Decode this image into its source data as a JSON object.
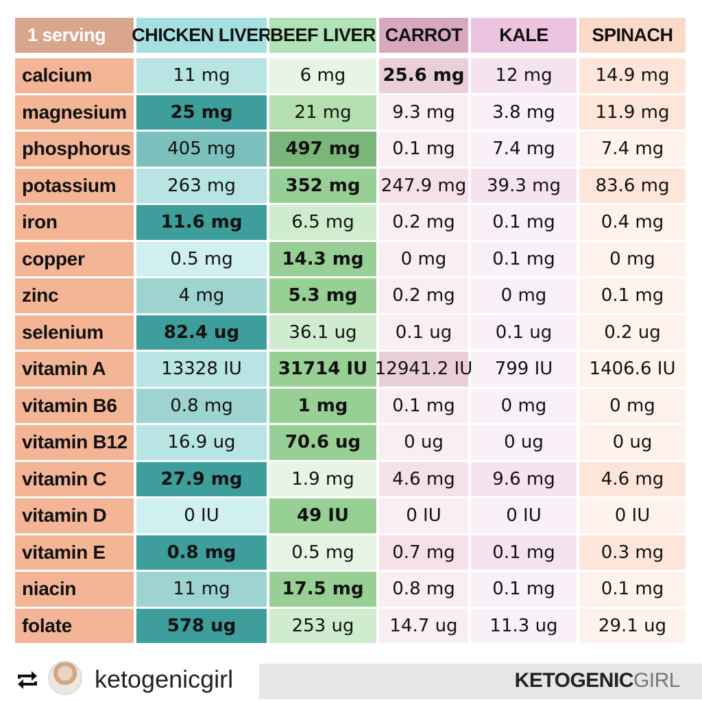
{
  "header": {
    "serving_label": "1 serving",
    "columns": [
      "CHICKEN LIVER",
      "BEEF LIVER",
      "CARROT",
      "KALE",
      "SPINACH"
    ]
  },
  "colors": {
    "header_bg": [
      "#d9a58d",
      "#a6dfe0",
      "#b2e3b6",
      "#d8a8bd",
      "#ecc3e0",
      "#fbd9c8"
    ],
    "row_label_bg": "#f4b596",
    "chicken_liver_shades": [
      "#cfeff0",
      "#b8e4e4",
      "#9dd3d0",
      "#7bc0bc",
      "#3d9e9b"
    ],
    "beef_liver_shades": [
      "#e7f5e4",
      "#cfecce",
      "#b4dfb0",
      "#98cf94",
      "#7ab57a"
    ],
    "carrot_shades": [
      "#f9eef1",
      "#f5e1e8",
      "#eacfd8"
    ],
    "kale_shades": [
      "#faf0f7",
      "#f5e4f0"
    ],
    "spinach_shades": [
      "#fff2ec",
      "#fde5da"
    ]
  },
  "rows": [
    {
      "label": "calcium",
      "values": [
        "11 mg",
        "6 mg",
        "25.6 mg",
        "12 mg",
        "14.9 mg"
      ],
      "bold": [
        false,
        false,
        true,
        false,
        false
      ],
      "shade": [
        1,
        0,
        2,
        1,
        1
      ]
    },
    {
      "label": "magnesium",
      "values": [
        "25 mg",
        "21 mg",
        "9.3 mg",
        "3.8 mg",
        "11.9 mg"
      ],
      "bold": [
        true,
        false,
        false,
        false,
        false
      ],
      "shade": [
        4,
        2,
        0,
        0,
        1
      ]
    },
    {
      "label": "phosphorus",
      "values": [
        "405 mg",
        "497 mg",
        "0.1 mg",
        "7.4 mg",
        "7.4 mg"
      ],
      "bold": [
        false,
        true,
        false,
        false,
        false
      ],
      "shade": [
        3,
        4,
        0,
        0,
        0
      ]
    },
    {
      "label": "potassium",
      "values": [
        "263 mg",
        "352 mg",
        "247.9 mg",
        "39.3 mg",
        "83.6 mg"
      ],
      "bold": [
        false,
        true,
        false,
        false,
        false
      ],
      "shade": [
        1,
        3,
        1,
        1,
        1
      ]
    },
    {
      "label": "iron",
      "values": [
        "11.6 mg",
        "6.5 mg",
        "0.2 mg",
        "0.1 mg",
        "0.4 mg"
      ],
      "bold": [
        true,
        false,
        false,
        false,
        false
      ],
      "shade": [
        4,
        1,
        0,
        0,
        0
      ]
    },
    {
      "label": "copper",
      "values": [
        "0.5 mg",
        "14.3 mg",
        "0 mg",
        "0.1 mg",
        "0 mg"
      ],
      "bold": [
        false,
        true,
        false,
        false,
        false
      ],
      "shade": [
        0,
        3,
        0,
        0,
        0
      ]
    },
    {
      "label": "zinc",
      "values": [
        "4 mg",
        "5.3 mg",
        "0.2 mg",
        "0 mg",
        "0.1 mg"
      ],
      "bold": [
        false,
        true,
        false,
        false,
        false
      ],
      "shade": [
        2,
        3,
        0,
        0,
        0
      ]
    },
    {
      "label": "selenium",
      "values": [
        "82.4 ug",
        "36.1 ug",
        "0.1 ug",
        "0.1 ug",
        "0.2 ug"
      ],
      "bold": [
        true,
        false,
        false,
        false,
        false
      ],
      "shade": [
        4,
        1,
        0,
        0,
        0
      ]
    },
    {
      "label": "vitamin A",
      "values": [
        "13328 IU",
        "31714 IU",
        "12941.2 IU",
        "799 IU",
        "1406.6 IU"
      ],
      "bold": [
        false,
        true,
        false,
        false,
        false
      ],
      "shade": [
        1,
        3,
        2,
        0,
        0
      ]
    },
    {
      "label": "vitamin B6",
      "values": [
        "0.8 mg",
        "1 mg",
        "0.1 mg",
        "0 mg",
        "0 mg"
      ],
      "bold": [
        false,
        true,
        false,
        false,
        false
      ],
      "shade": [
        2,
        3,
        0,
        0,
        0
      ]
    },
    {
      "label": "vitamin B12",
      "values": [
        "16.9 ug",
        "70.6 ug",
        "0 ug",
        "0 ug",
        "0 ug"
      ],
      "bold": [
        false,
        true,
        false,
        false,
        false
      ],
      "shade": [
        1,
        3,
        0,
        0,
        0
      ]
    },
    {
      "label": "vitamin C",
      "values": [
        "27.9 mg",
        "1.9 mg",
        "4.6 mg",
        "9.6 mg",
        "4.6 mg"
      ],
      "bold": [
        true,
        false,
        false,
        false,
        false
      ],
      "shade": [
        4,
        0,
        1,
        1,
        1
      ]
    },
    {
      "label": "vitamin D",
      "values": [
        "0 IU",
        "49 IU",
        "0 IU",
        "0 IU",
        "0 IU"
      ],
      "bold": [
        false,
        true,
        false,
        false,
        false
      ],
      "shade": [
        0,
        3,
        0,
        0,
        0
      ]
    },
    {
      "label": "vitamin E",
      "values": [
        "0.8 mg",
        "0.5 mg",
        "0.7 mg",
        "0.1 mg",
        "0.3 mg"
      ],
      "bold": [
        true,
        false,
        false,
        false,
        false
      ],
      "shade": [
        4,
        0,
        1,
        1,
        1
      ]
    },
    {
      "label": "niacin",
      "values": [
        "11 mg",
        "17.5 mg",
        "0.8 mg",
        "0.1 mg",
        "0.1 mg"
      ],
      "bold": [
        false,
        true,
        false,
        false,
        false
      ],
      "shade": [
        2,
        3,
        0,
        0,
        0
      ]
    },
    {
      "label": "folate",
      "values": [
        "578 ug",
        "253 ug",
        "14.7 ug",
        "11.3 ug",
        "29.1 ug"
      ],
      "bold": [
        true,
        false,
        false,
        false,
        false
      ],
      "shade": [
        4,
        1,
        0,
        0,
        0
      ]
    }
  ],
  "footer": {
    "repost_icon": "repost-icon",
    "avatar": "avatar",
    "username": "ketogenicgirl",
    "brand_bold": "KETOGENIC",
    "brand_light": "GIRL"
  }
}
